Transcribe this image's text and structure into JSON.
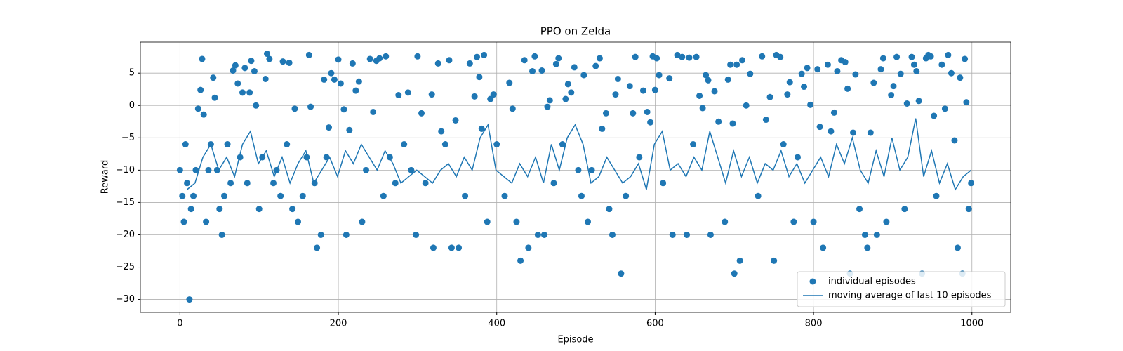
{
  "chart_data": {
    "type": "scatter",
    "title": "PPO on Zelda",
    "x_label": "Episode",
    "y_label": "Reward",
    "xlim": [
      -49.95,
      1048.95
    ],
    "ylim": [
      -32,
      9.8
    ],
    "xticks": [
      0,
      200,
      400,
      600,
      800,
      1000
    ],
    "yticks": [
      {
        "value": -30,
        "label": "−30"
      },
      {
        "value": -25,
        "label": "−25"
      },
      {
        "value": -20,
        "label": "−20"
      },
      {
        "value": -15,
        "label": "−15"
      },
      {
        "value": -10,
        "label": "−10"
      },
      {
        "value": -5,
        "label": "−5"
      },
      0,
      5
    ],
    "grid": true,
    "legend": "lower right",
    "series": [
      {
        "name": "individual episodes",
        "type": "scatter",
        "color": "#1f77b4",
        "x": [
          0,
          3,
          5,
          7,
          9,
          12,
          14,
          17,
          20,
          23,
          26,
          28,
          30,
          33,
          36,
          39,
          42,
          44,
          47,
          50,
          53,
          56,
          60,
          64,
          67,
          70,
          73,
          76,
          79,
          82,
          85,
          88,
          90,
          94,
          96,
          100,
          104,
          108,
          110,
          113,
          118,
          122,
          127,
          130,
          135,
          138,
          142,
          145,
          149,
          155,
          160,
          163,
          165,
          170,
          173,
          178,
          182,
          185,
          188,
          191,
          195,
          200,
          203,
          207,
          210,
          214,
          218,
          222,
          226,
          230,
          235,
          240,
          244,
          248,
          252,
          257,
          260,
          265,
          272,
          276,
          283,
          288,
          292,
          298,
          300,
          305,
          310,
          318,
          320,
          326,
          330,
          335,
          340,
          343,
          348,
          352,
          360,
          366,
          372,
          375,
          378,
          381,
          384,
          388,
          392,
          396,
          400,
          410,
          416,
          420,
          425,
          430,
          435,
          440,
          445,
          448,
          452,
          457,
          460,
          464,
          467,
          472,
          475,
          478,
          483,
          487,
          490,
          494,
          498,
          503,
          507,
          510,
          515,
          520,
          525,
          530,
          533,
          538,
          542,
          546,
          550,
          553,
          557,
          563,
          568,
          572,
          575,
          580,
          585,
          590,
          594,
          597,
          600,
          602,
          605,
          610,
          618,
          622,
          628,
          634,
          640,
          643,
          648,
          652,
          656,
          660,
          664,
          667,
          670,
          675,
          680,
          688,
          692,
          695,
          698,
          700,
          703,
          707,
          710,
          715,
          720,
          730,
          735,
          740,
          745,
          750,
          753,
          758,
          762,
          767,
          770,
          775,
          780,
          785,
          788,
          792,
          796,
          800,
          805,
          808,
          812,
          818,
          822,
          826,
          830,
          835,
          840,
          843,
          846,
          850,
          853,
          858,
          865,
          868,
          872,
          876,
          880,
          885,
          888,
          892,
          898,
          901,
          905,
          910,
          915,
          918,
          924,
          927,
          930,
          933,
          937,
          942,
          945,
          948,
          952,
          955,
          962,
          966,
          970,
          974,
          978,
          982,
          985,
          988,
          991,
          993,
          996,
          999
        ],
        "values": [
          -10,
          -14,
          -18,
          -6,
          -12,
          -30,
          -16,
          -14,
          -10,
          -0.5,
          2.4,
          7.2,
          -1.4,
          -18,
          -10,
          -6,
          4.3,
          1.2,
          -10,
          -16,
          -20,
          -14,
          -6,
          -12,
          5.4,
          6.2,
          3.4,
          -8,
          2,
          5.8,
          -12,
          2,
          6.9,
          5.3,
          0,
          -16,
          -8,
          4.1,
          8,
          7.2,
          -12,
          -10,
          -14,
          6.8,
          -6,
          6.6,
          -16,
          -0.5,
          -18,
          -14,
          -8,
          7.8,
          -0.2,
          -12,
          -22,
          -20,
          4,
          -8,
          -3.4,
          5,
          4,
          7.1,
          3.4,
          -0.6,
          -20,
          -3.8,
          6.5,
          2.3,
          3.7,
          -18,
          -10,
          7.2,
          -1,
          6.9,
          7.3,
          -14,
          7.6,
          -8,
          -12,
          1.6,
          -6,
          2,
          -10,
          -20,
          7.6,
          -1.2,
          -12,
          1.7,
          -22,
          6.5,
          -4,
          -6,
          7,
          -22,
          -2.3,
          -22,
          -14,
          6.5,
          1.4,
          7.5,
          4.4,
          -3.6,
          7.8,
          -18,
          1,
          1.7,
          -6,
          -14,
          3.5,
          -0.5,
          -18,
          -24,
          7,
          -22,
          5.3,
          7.6,
          -20,
          5.4,
          -20,
          -0.2,
          0.8,
          -12,
          6.4,
          7.3,
          -6,
          1,
          3.3,
          2,
          5.9,
          -10,
          -14,
          4.7,
          -18,
          -10,
          6.1,
          7.3,
          -3.6,
          -1.2,
          -16,
          -20,
          1.7,
          4.1,
          -26,
          -14,
          3,
          -1.2,
          7.5,
          -8,
          2.3,
          -1,
          -2.6,
          7.6,
          2.4,
          7.3,
          4.7,
          -12,
          4.2,
          -20,
          7.8,
          7.5,
          -20,
          7.4,
          -6,
          7.5,
          1.5,
          -0.4,
          4.7,
          3.9,
          -20,
          2.2,
          -2.5,
          -18,
          4,
          6.3,
          -2.8,
          -26,
          6.3,
          -24,
          7,
          0,
          4.9,
          -14,
          7.6,
          -2.2,
          1.3,
          -24,
          7.8,
          7.5,
          -6,
          1.7,
          3.6,
          -18,
          -8,
          4.9,
          2.9,
          5.8,
          0.1,
          -18,
          5.6,
          -3.3,
          -22,
          6.3,
          -4,
          -1.1,
          5.3,
          7,
          6.7,
          2.6,
          -26,
          -4.2,
          4.8,
          -16,
          -20,
          -22,
          -4.2,
          3.5,
          -20,
          5.6,
          7.3,
          -18,
          1.6,
          3,
          7.5,
          4.9,
          -16,
          0.3,
          7.5,
          6.3,
          5.3,
          0.7,
          -26,
          7.3,
          7.8,
          7.6,
          -1.6,
          -14,
          6.3,
          -0.5,
          7.8,
          5,
          -5.4,
          -22,
          4.3,
          -26,
          7.2,
          0.5,
          -16,
          -12
        ]
      },
      {
        "name": "moving average of last 10 episodes",
        "type": "line",
        "color": "#1f77b4",
        "x": [
          9,
          19,
          29,
          39,
          49,
          59,
          69,
          79,
          89,
          99,
          109,
          119,
          129,
          139,
          149,
          159,
          169,
          179,
          189,
          199,
          209,
          219,
          229,
          239,
          249,
          259,
          269,
          279,
          289,
          299,
          309,
          319,
          329,
          339,
          349,
          359,
          369,
          379,
          389,
          399,
          409,
          419,
          429,
          439,
          449,
          459,
          469,
          479,
          489,
          499,
          509,
          519,
          529,
          539,
          549,
          559,
          569,
          579,
          589,
          599,
          609,
          619,
          629,
          639,
          649,
          659,
          669,
          679,
          689,
          699,
          709,
          719,
          729,
          739,
          749,
          759,
          769,
          779,
          789,
          799,
          809,
          819,
          829,
          839,
          849,
          859,
          869,
          879,
          889,
          899,
          909,
          919,
          929,
          939,
          949,
          959,
          969,
          979,
          989,
          999
        ],
        "values": [
          -13,
          -12,
          -8,
          -6,
          -10,
          -8,
          -11,
          -6,
          -4,
          -9,
          -7,
          -11,
          -8,
          -12,
          -9,
          -7,
          -12,
          -10,
          -8,
          -11,
          -7,
          -9,
          -6,
          -8,
          -10,
          -7,
          -9,
          -12,
          -11,
          -10,
          -11,
          -12,
          -10,
          -9,
          -11,
          -8,
          -10,
          -5,
          -3,
          -10,
          -11,
          -12,
          -9,
          -11,
          -8,
          -12,
          -6,
          -10,
          -5,
          -3,
          -6,
          -12,
          -11,
          -8,
          -10,
          -12,
          -11,
          -9,
          -13,
          -6,
          -4,
          -10,
          -9,
          -11,
          -8,
          -10,
          -4,
          -8,
          -12,
          -7,
          -11,
          -8,
          -12,
          -9,
          -10,
          -7,
          -11,
          -9,
          -12,
          -10,
          -8,
          -11,
          -6,
          -9,
          -5,
          -10,
          -12,
          -7,
          -11,
          -5,
          -10,
          -8,
          -2,
          -11,
          -7,
          -12,
          -9,
          -13,
          -11,
          -10
        ]
      }
    ]
  }
}
